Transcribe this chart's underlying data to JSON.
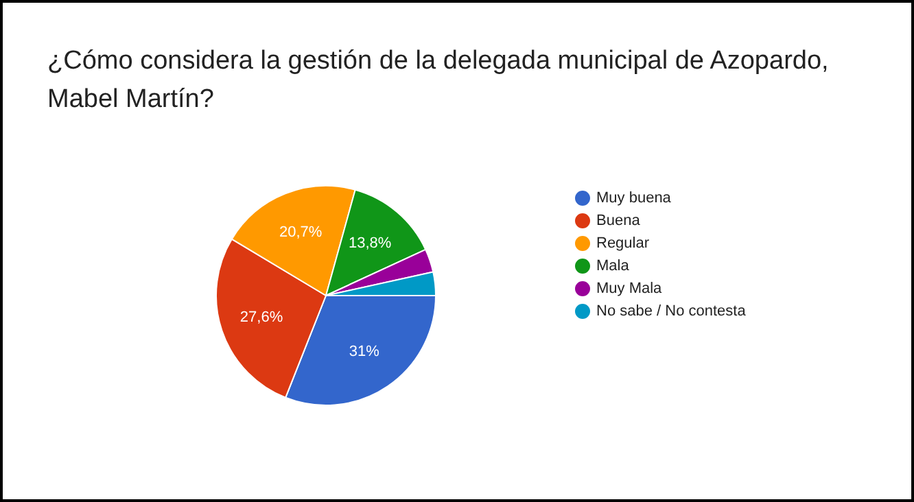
{
  "chart_data": {
    "type": "pie",
    "title": "¿Cómo considera la gestión de la delegada municipal de Azopardo, Mabel Martín?",
    "categories": [
      "Muy buena",
      "Buena",
      "Regular",
      "Mala",
      "Muy Mala",
      "No sabe / No contesta"
    ],
    "values": [
      31,
      27.6,
      20.7,
      13.8,
      3.45,
      3.45
    ],
    "colors": [
      "#3366cc",
      "#dc3912",
      "#ff9900",
      "#109618",
      "#990099",
      "#0099c6"
    ],
    "value_labels": [
      "31%",
      "27,6%",
      "20,7%",
      "13,8%",
      null,
      null
    ],
    "legend": "right"
  }
}
